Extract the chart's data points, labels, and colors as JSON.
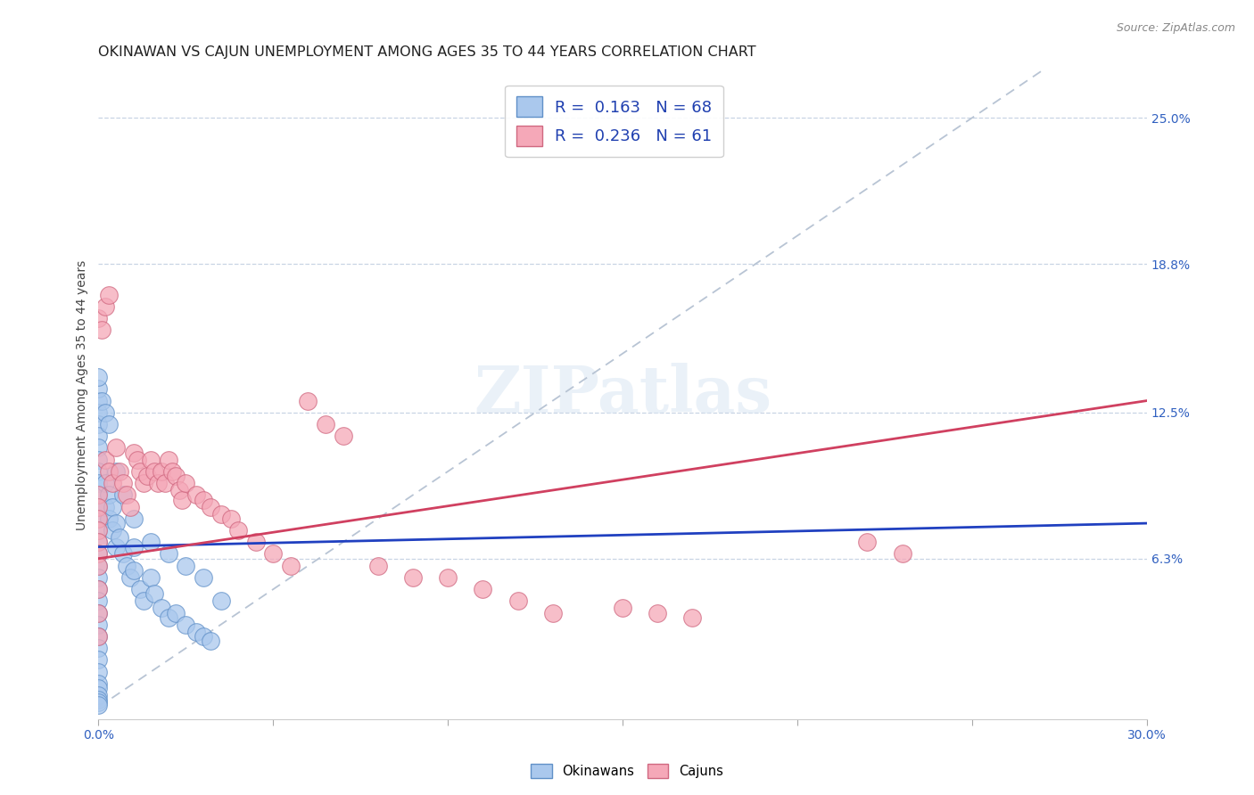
{
  "title": "OKINAWAN VS CAJUN UNEMPLOYMENT AMONG AGES 35 TO 44 YEARS CORRELATION CHART",
  "source": "Source: ZipAtlas.com",
  "ylabel": "Unemployment Among Ages 35 to 44 years",
  "xlim": [
    0.0,
    0.3
  ],
  "ylim": [
    -0.005,
    0.27
  ],
  "xticks": [
    0.0,
    0.05,
    0.1,
    0.15,
    0.2,
    0.25,
    0.3
  ],
  "xticklabels": [
    "0.0%",
    "",
    "",
    "",
    "",
    "",
    "30.0%"
  ],
  "right_yticks": [
    0.063,
    0.125,
    0.188,
    0.25
  ],
  "right_yticklabels": [
    "6.3%",
    "12.5%",
    "18.8%",
    "25.0%"
  ],
  "okinawan_color": "#aac8ed",
  "okinawan_edge": "#6090c8",
  "cajun_color": "#f5a8b8",
  "cajun_edge": "#d06880",
  "trend_blue_color": "#2040c0",
  "trend_pink_color": "#d04060",
  "ref_line_color": "#b8c4d4",
  "legend_R_okinawan": "0.163",
  "legend_N_okinawan": "68",
  "legend_R_cajun": "0.236",
  "legend_N_cajun": "61",
  "okinawan_x": [
    0.0,
    0.0,
    0.0,
    0.0,
    0.0,
    0.0,
    0.0,
    0.0,
    0.0,
    0.0,
    0.0,
    0.0,
    0.0,
    0.0,
    0.0,
    0.0,
    0.0,
    0.0,
    0.0,
    0.0,
    0.0,
    0.0,
    0.0,
    0.0,
    0.0,
    0.0,
    0.0,
    0.0,
    0.0,
    0.0,
    0.002,
    0.002,
    0.003,
    0.003,
    0.004,
    0.004,
    0.005,
    0.005,
    0.006,
    0.007,
    0.008,
    0.009,
    0.01,
    0.01,
    0.012,
    0.013,
    0.015,
    0.016,
    0.018,
    0.02,
    0.022,
    0.025,
    0.028,
    0.03,
    0.032,
    0.0,
    0.0,
    0.001,
    0.002,
    0.003,
    0.005,
    0.007,
    0.01,
    0.015,
    0.02,
    0.025,
    0.03,
    0.035
  ],
  "okinawan_y": [
    0.13,
    0.125,
    0.12,
    0.115,
    0.11,
    0.105,
    0.1,
    0.095,
    0.09,
    0.085,
    0.08,
    0.075,
    0.07,
    0.065,
    0.06,
    0.055,
    0.05,
    0.045,
    0.04,
    0.035,
    0.03,
    0.025,
    0.02,
    0.015,
    0.01,
    0.008,
    0.005,
    0.003,
    0.002,
    0.001,
    0.095,
    0.085,
    0.09,
    0.08,
    0.085,
    0.075,
    0.078,
    0.068,
    0.072,
    0.065,
    0.06,
    0.055,
    0.068,
    0.058,
    0.05,
    0.045,
    0.055,
    0.048,
    0.042,
    0.038,
    0.04,
    0.035,
    0.032,
    0.03,
    0.028,
    0.135,
    0.14,
    0.13,
    0.125,
    0.12,
    0.1,
    0.09,
    0.08,
    0.07,
    0.065,
    0.06,
    0.055,
    0.045
  ],
  "cajun_x": [
    0.0,
    0.0,
    0.0,
    0.0,
    0.0,
    0.0,
    0.0,
    0.0,
    0.0,
    0.0,
    0.002,
    0.003,
    0.004,
    0.005,
    0.006,
    0.007,
    0.008,
    0.009,
    0.01,
    0.011,
    0.012,
    0.013,
    0.014,
    0.015,
    0.016,
    0.017,
    0.018,
    0.019,
    0.02,
    0.021,
    0.022,
    0.023,
    0.024,
    0.025,
    0.028,
    0.03,
    0.032,
    0.035,
    0.038,
    0.04,
    0.045,
    0.05,
    0.055,
    0.06,
    0.065,
    0.07,
    0.08,
    0.09,
    0.1,
    0.11,
    0.12,
    0.13,
    0.15,
    0.16,
    0.17,
    0.22,
    0.23,
    0.0,
    0.001,
    0.002,
    0.003
  ],
  "cajun_y": [
    0.09,
    0.085,
    0.08,
    0.075,
    0.07,
    0.065,
    0.06,
    0.05,
    0.04,
    0.03,
    0.105,
    0.1,
    0.095,
    0.11,
    0.1,
    0.095,
    0.09,
    0.085,
    0.108,
    0.105,
    0.1,
    0.095,
    0.098,
    0.105,
    0.1,
    0.095,
    0.1,
    0.095,
    0.105,
    0.1,
    0.098,
    0.092,
    0.088,
    0.095,
    0.09,
    0.088,
    0.085,
    0.082,
    0.08,
    0.075,
    0.07,
    0.065,
    0.06,
    0.13,
    0.12,
    0.115,
    0.06,
    0.055,
    0.055,
    0.05,
    0.045,
    0.04,
    0.042,
    0.04,
    0.038,
    0.07,
    0.065,
    0.165,
    0.16,
    0.17,
    0.175
  ],
  "background_color": "#ffffff",
  "grid_color": "#c8d4e4",
  "title_fontsize": 11.5,
  "axis_label_fontsize": 10,
  "tick_fontsize": 10,
  "legend_fontsize": 13
}
